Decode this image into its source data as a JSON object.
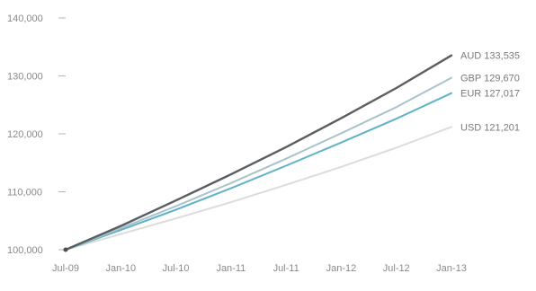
{
  "chart_data": {
    "type": "line",
    "title": "",
    "xlabel": "",
    "ylabel": "",
    "x": [
      "Jul-09",
      "Jan-10",
      "Jul-10",
      "Jan-11",
      "Jul-11",
      "Jan-12",
      "Jul-12",
      "Jan-13"
    ],
    "xtick_labels": [
      "Jul-09",
      "Jan-10",
      "Jul-10",
      "Jan-11",
      "Jul-11",
      "Jan-12",
      "Jul-12",
      "Jan-13"
    ],
    "ylim": [
      100000,
      140000
    ],
    "ytick_values": [
      100000,
      110000,
      120000,
      130000,
      140000
    ],
    "ytick_labels": [
      "100,000",
      "110,000",
      "120,000",
      "130,000",
      "140,000"
    ],
    "grid": false,
    "legend": "end-of-line labels",
    "series": [
      {
        "name": "AUD",
        "end_label": "AUD 133,535",
        "color": "#5a5e60",
        "values": [
          100000,
          104100,
          108500,
          113000,
          117700,
          122700,
          127900,
          133535
        ]
      },
      {
        "name": "GBP",
        "end_label": "GBP 129,670",
        "color": "#a9c3ca",
        "values": [
          100000,
          103700,
          107500,
          111500,
          115700,
          120100,
          124600,
          129670
        ]
      },
      {
        "name": "EUR",
        "end_label": "EUR 127,017",
        "color": "#5fb2c8",
        "values": [
          100000,
          103400,
          106900,
          110600,
          114500,
          118500,
          122600,
          127017
        ]
      },
      {
        "name": "USD",
        "end_label": "USD 121,201",
        "color": "#dcdcdc",
        "values": [
          100000,
          102700,
          105400,
          108200,
          111200,
          114300,
          117600,
          121201
        ]
      }
    ]
  }
}
